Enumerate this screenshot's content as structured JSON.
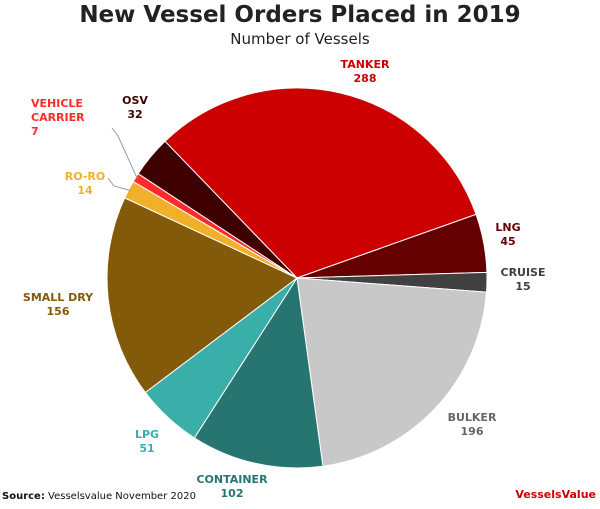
{
  "chart_data": {
    "type": "pie",
    "title": "New Vessel Orders Placed in 2019",
    "subtitle": "Number of Vessels",
    "categories": [
      "TANKER",
      "LNG",
      "CRUISE",
      "BULKER",
      "CONTAINER",
      "LPG",
      "SMALL DRY",
      "RO-RO",
      "VEHICLE CARRIER",
      "OSV"
    ],
    "values": [
      288,
      45,
      15,
      196,
      102,
      51,
      156,
      14,
      7,
      32
    ],
    "colors": [
      "#cc0000",
      "#650000",
      "#404040",
      "#c8c8c8",
      "#267570",
      "#3aafa9",
      "#835a0a",
      "#f0b02a",
      "#ff2a2a",
      "#3e0000"
    ],
    "source_label": "Source:",
    "source": "Vesselsvalue November 2020",
    "logo": "VesselsValue"
  }
}
